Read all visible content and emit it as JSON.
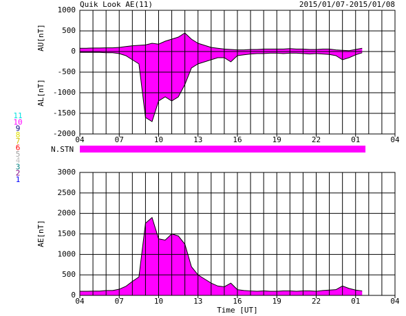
{
  "title": "Quik Look AE(11)",
  "date_range": "2015/01/07-2015/01/08",
  "legend": {
    "items": [
      {
        "label": "11",
        "color": "#00e0e0"
      },
      {
        "label": "10",
        "color": "#ff00ff"
      },
      {
        "label": "9",
        "color": "#000080"
      },
      {
        "label": "8",
        "color": "#e0e000"
      },
      {
        "label": "7",
        "color": "#d0c000"
      },
      {
        "label": "6",
        "color": "#ff0000"
      },
      {
        "label": "5",
        "color": "#a0a0a0"
      },
      {
        "label": "4",
        "color": "#c0c0c0"
      },
      {
        "label": "3",
        "color": "#008080"
      },
      {
        "label": "2",
        "color": "#800080"
      },
      {
        "label": "1",
        "color": "#0000ff"
      }
    ]
  },
  "nstn": {
    "label": "N.STN",
    "color": "#ff00ff",
    "x": [
      0,
      21.75
    ]
  },
  "chart_data": [
    {
      "type": "area",
      "ylabel_top": "AU[nT]",
      "ylabel_bottom": "AL[nT]",
      "fill": "#ff00ff",
      "xlim": [
        0,
        24
      ],
      "x_grid_step": 1,
      "ylim": [
        -2000,
        1000
      ],
      "yticks": [
        -2000,
        -1500,
        -1000,
        -500,
        0,
        500,
        1000
      ],
      "grid": true,
      "xticks": [
        {
          "value": 0,
          "label": "04"
        },
        {
          "value": 3,
          "label": "07"
        },
        {
          "value": 6,
          "label": "10"
        },
        {
          "value": 9,
          "label": "13"
        },
        {
          "value": 12,
          "label": "16"
        },
        {
          "value": 15,
          "label": "19"
        },
        {
          "value": 18,
          "label": "22"
        },
        {
          "value": 21,
          "label": "01"
        },
        {
          "value": 24,
          "label": "04"
        }
      ],
      "x": [
        0,
        0.5,
        1,
        1.5,
        2,
        2.5,
        3,
        3.5,
        4,
        4.5,
        5,
        5.5,
        6,
        6.5,
        7,
        7.5,
        8,
        8.5,
        9,
        9.5,
        10,
        10.5,
        11,
        11.5,
        12,
        12.5,
        13,
        13.5,
        14,
        14.5,
        15,
        15.5,
        16,
        16.5,
        17,
        17.5,
        18,
        18.5,
        19,
        19.5,
        20,
        20.5,
        21,
        21.5
      ],
      "series": [
        {
          "name": "AU",
          "color": "#000000",
          "values": [
            80,
            80,
            85,
            85,
            90,
            90,
            100,
            120,
            140,
            150,
            160,
            200,
            180,
            250,
            300,
            350,
            450,
            300,
            200,
            150,
            100,
            80,
            60,
            50,
            40,
            40,
            50,
            50,
            60,
            60,
            60,
            60,
            70,
            60,
            60,
            50,
            50,
            60,
            60,
            40,
            30,
            20,
            50,
            80
          ]
        },
        {
          "name": "AL",
          "color": "#000000",
          "values": [
            -20,
            -20,
            -20,
            -20,
            -30,
            -30,
            -50,
            -100,
            -200,
            -300,
            -1600,
            -1700,
            -1200,
            -1100,
            -1200,
            -1100,
            -800,
            -400,
            -300,
            -250,
            -200,
            -150,
            -150,
            -250,
            -100,
            -80,
            -60,
            -50,
            -50,
            -40,
            -40,
            -50,
            -40,
            -40,
            -50,
            -60,
            -50,
            -60,
            -70,
            -100,
            -200,
            -150,
            -80,
            -30
          ]
        }
      ]
    },
    {
      "type": "area",
      "ylabel": "AE[nT]",
      "xlabel": "Time [UT]",
      "fill": "#ff00ff",
      "xlim": [
        0,
        24
      ],
      "x_grid_step": 1,
      "ylim": [
        0,
        3000
      ],
      "yticks": [
        0,
        500,
        1000,
        1500,
        2000,
        2500,
        3000
      ],
      "grid": true,
      "xticks": [
        {
          "value": 0,
          "label": "04"
        },
        {
          "value": 3,
          "label": "07"
        },
        {
          "value": 6,
          "label": "10"
        },
        {
          "value": 9,
          "label": "13"
        },
        {
          "value": 12,
          "label": "16"
        },
        {
          "value": 15,
          "label": "19"
        },
        {
          "value": 18,
          "label": "22"
        },
        {
          "value": 21,
          "label": "01"
        },
        {
          "value": 24,
          "label": "04"
        }
      ],
      "x": [
        0,
        0.5,
        1,
        1.5,
        2,
        2.5,
        3,
        3.5,
        4,
        4.5,
        5,
        5.5,
        6,
        6.5,
        7,
        7.5,
        8,
        8.5,
        9,
        9.5,
        10,
        10.5,
        11,
        11.5,
        12,
        12.5,
        13,
        13.5,
        14,
        14.5,
        15,
        15.5,
        16,
        16.5,
        17,
        17.5,
        18,
        18.5,
        19,
        19.5,
        20,
        20.5,
        21,
        21.5
      ],
      "series": [
        {
          "name": "AE",
          "color": "#000000",
          "values": [
            100,
            100,
            105,
            105,
            120,
            120,
            150,
            220,
            340,
            450,
            1760,
            1900,
            1380,
            1350,
            1500,
            1450,
            1250,
            700,
            500,
            400,
            300,
            230,
            210,
            300,
            140,
            120,
            110,
            100,
            110,
            100,
            100,
            110,
            110,
            100,
            110,
            110,
            100,
            120,
            130,
            140,
            230,
            170,
            130,
            110
          ]
        }
      ]
    }
  ]
}
